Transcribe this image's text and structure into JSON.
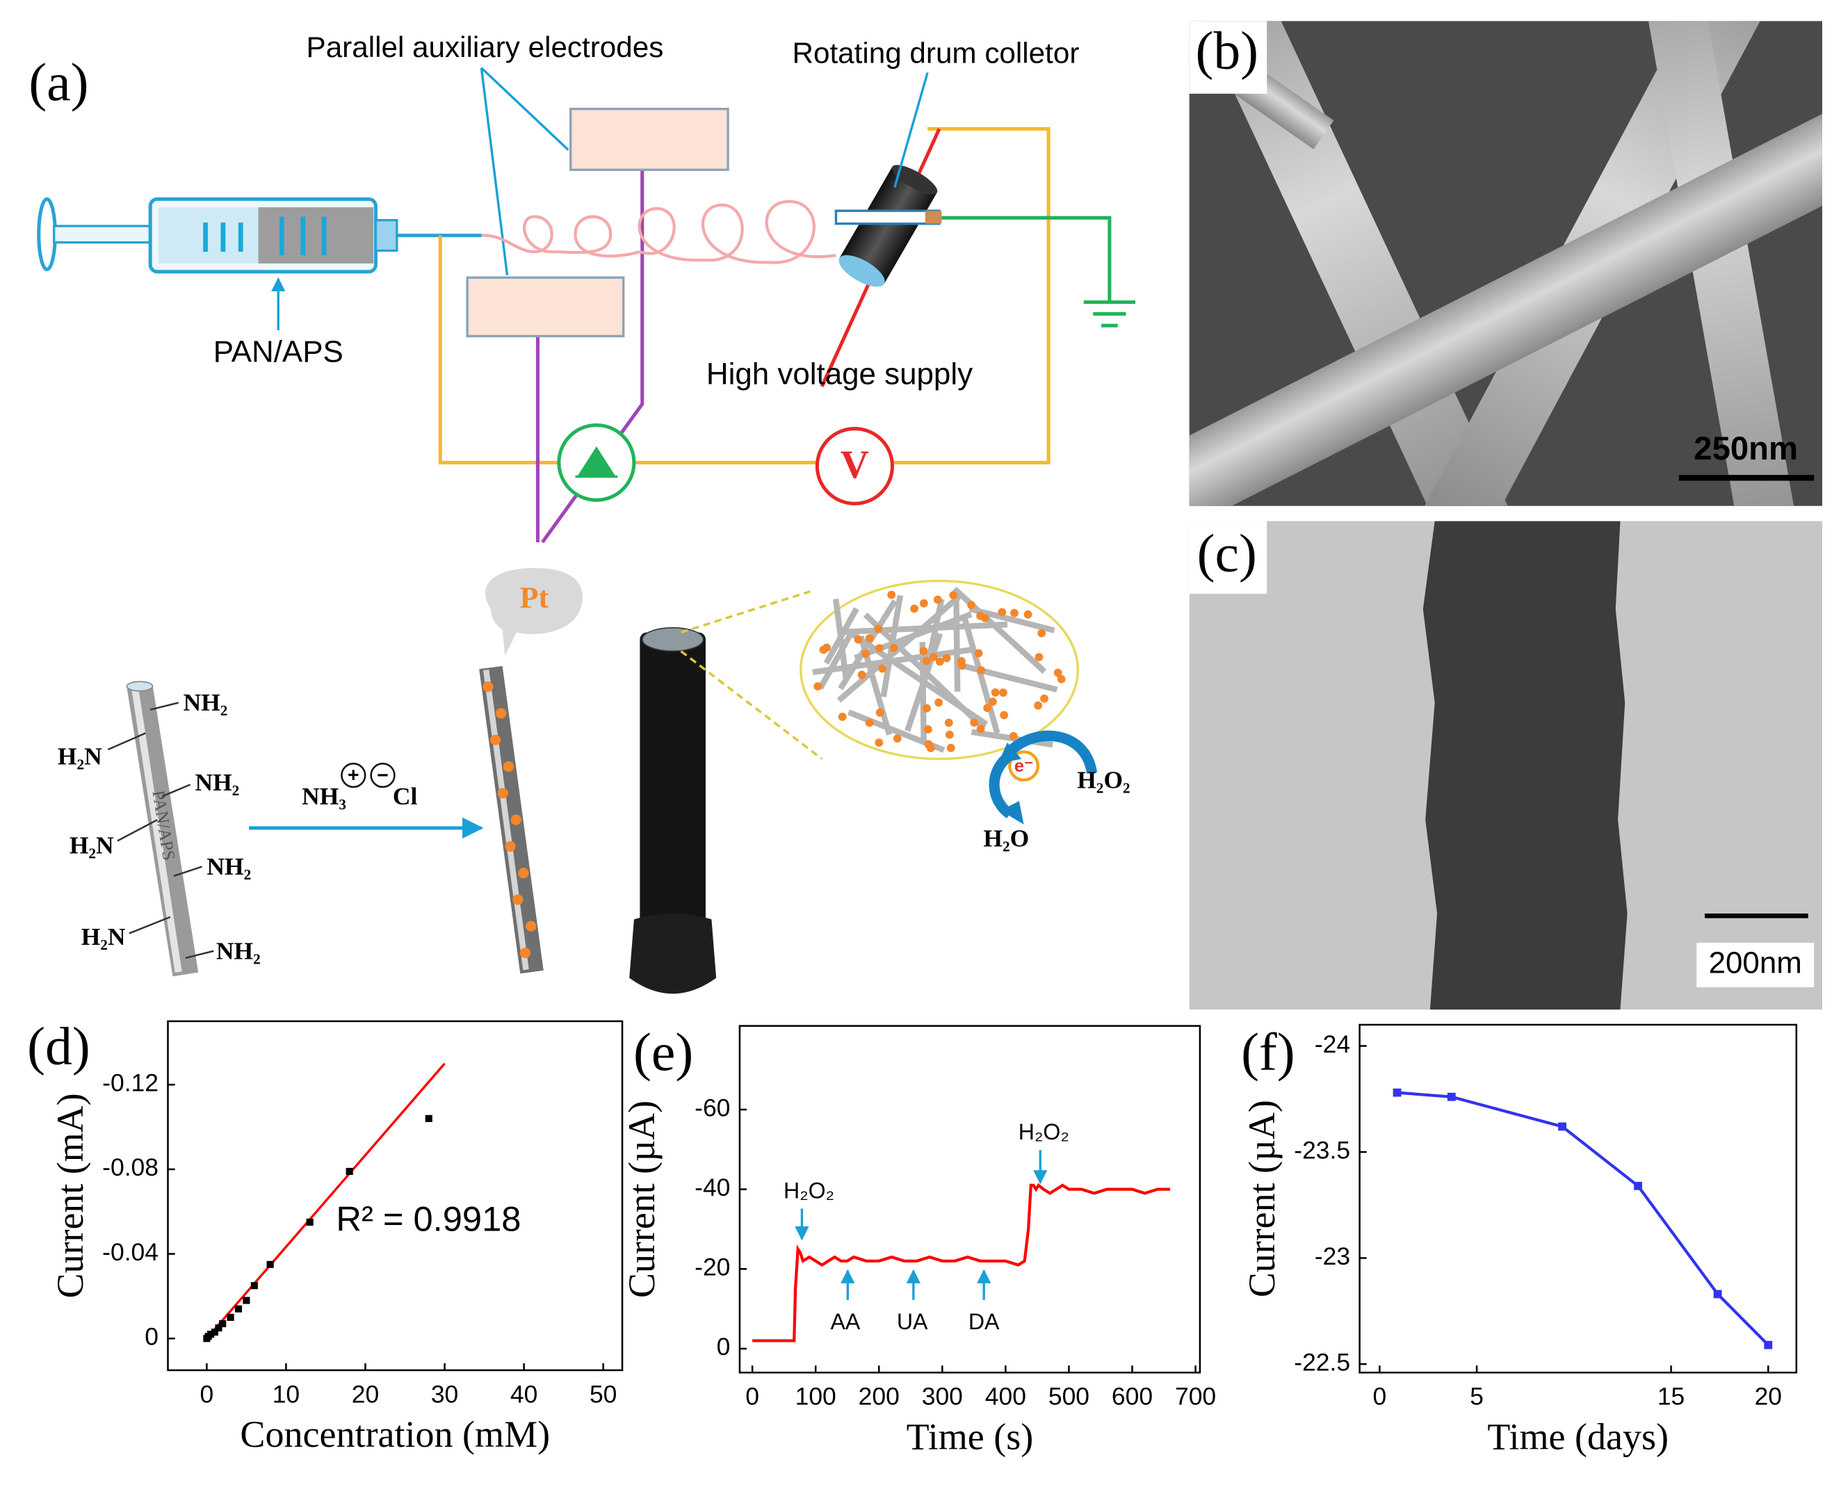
{
  "panel_labels": [
    "(a)",
    "(b)",
    "(c)",
    "(d)",
    "(e)",
    "(f)"
  ],
  "diagram": {
    "electrodes_label": "Parallel auxiliary electrodes",
    "drum_label": "Rotating drum colletor",
    "syringe_label": "PAN/APS",
    "supply_label": "High voltage supply",
    "voltmeter": "V",
    "catalyst": "Pt",
    "fiber_label": "PAN/APS",
    "left_groups": [
      "H₂N",
      "H₂N",
      "H₂N"
    ],
    "right_groups": [
      "NH₂",
      "NH₂",
      "NH₂",
      "NH₂"
    ],
    "reagent": [
      "NH₃",
      "+",
      "−",
      "Cl"
    ],
    "electron": "e⁻",
    "reactant": "H₂O₂",
    "product": "H₂O"
  },
  "sem_image": {
    "scale_bar": "250nm"
  },
  "tem_image": {
    "scale_bar": "200nm"
  },
  "chart_data": [
    {
      "type": "scatter",
      "xlabel": "Concentration (mM)",
      "ylabel": "Current (mA)",
      "x": [
        0,
        0.2,
        0.5,
        1,
        1.5,
        2,
        3,
        4,
        5,
        6,
        8,
        13,
        18,
        28
      ],
      "values": [
        0,
        -0.001,
        -0.002,
        -0.003,
        -0.005,
        -0.007,
        -0.01,
        -0.014,
        -0.018,
        -0.025,
        -0.035,
        -0.055,
        -0.079,
        -0.104
      ],
      "color": "#000000",
      "fit": {
        "x": [
          0,
          30
        ],
        "values": [
          0,
          -0.13
        ],
        "color": "#ff0000"
      },
      "annotation": "R² = 0.9918",
      "xlim": [
        -4.9,
        52.4
      ],
      "ylim": [
        0.015,
        -0.15
      ],
      "xticks": [
        0,
        10,
        20,
        30,
        40,
        50
      ],
      "yticks": [
        0,
        -0.04,
        -0.08,
        -0.12
      ]
    },
    {
      "type": "line",
      "xlabel": "Time (s)",
      "ylabel": "Current (µA)",
      "x": [
        0,
        30,
        60,
        66,
        68,
        72,
        76,
        80,
        90,
        100,
        110,
        120,
        130,
        140,
        150,
        160,
        180,
        200,
        220,
        240,
        260,
        280,
        300,
        320,
        340,
        360,
        380,
        400,
        420,
        430,
        436,
        440,
        444,
        448,
        452,
        460,
        470,
        480,
        490,
        500,
        520,
        540,
        560,
        580,
        600,
        620,
        640,
        660
      ],
      "values": [
        -2,
        -2,
        -2,
        -2,
        -15,
        -25,
        -24,
        -22,
        -23,
        -22,
        -21,
        -22,
        -23,
        -22,
        -22,
        -23,
        -22,
        -22,
        -23,
        -22,
        -22,
        -23,
        -22,
        -22,
        -23,
        -22,
        -22,
        -22,
        -21,
        -22,
        -30,
        -41,
        -41,
        -40,
        -41,
        -40,
        -39,
        -40,
        -41,
        -40,
        -40,
        -39,
        -40,
        -40,
        -40,
        -39,
        -40,
        -40
      ],
      "color": "#ff0000",
      "annotations": [
        "H₂O₂",
        "AA",
        "UA",
        "DA",
        "H₂O₂"
      ],
      "xlim": [
        -20,
        707
      ],
      "ylim": [
        6,
        -81
      ],
      "xticks": [
        0,
        100,
        200,
        300,
        400,
        500,
        600,
        700
      ],
      "yticks": [
        0,
        -20,
        -40,
        -60
      ]
    },
    {
      "type": "line",
      "markers": true,
      "xlabel": "Time (days)",
      "ylabel": "Current (µA)",
      "x": [
        0.9,
        3.7,
        9.4,
        13.3,
        17.4,
        20
      ],
      "values": [
        -23.78,
        -23.76,
        -23.62,
        -23.34,
        -22.83,
        -22.59
      ],
      "color": "#3333ee",
      "xlim": [
        -1.03,
        21.45
      ],
      "ylim": [
        -22.46,
        -24.1
      ],
      "xticks": [
        0,
        5,
        15,
        20
      ],
      "yticks": [
        -24,
        -23.5,
        -23,
        -22.5
      ]
    }
  ]
}
